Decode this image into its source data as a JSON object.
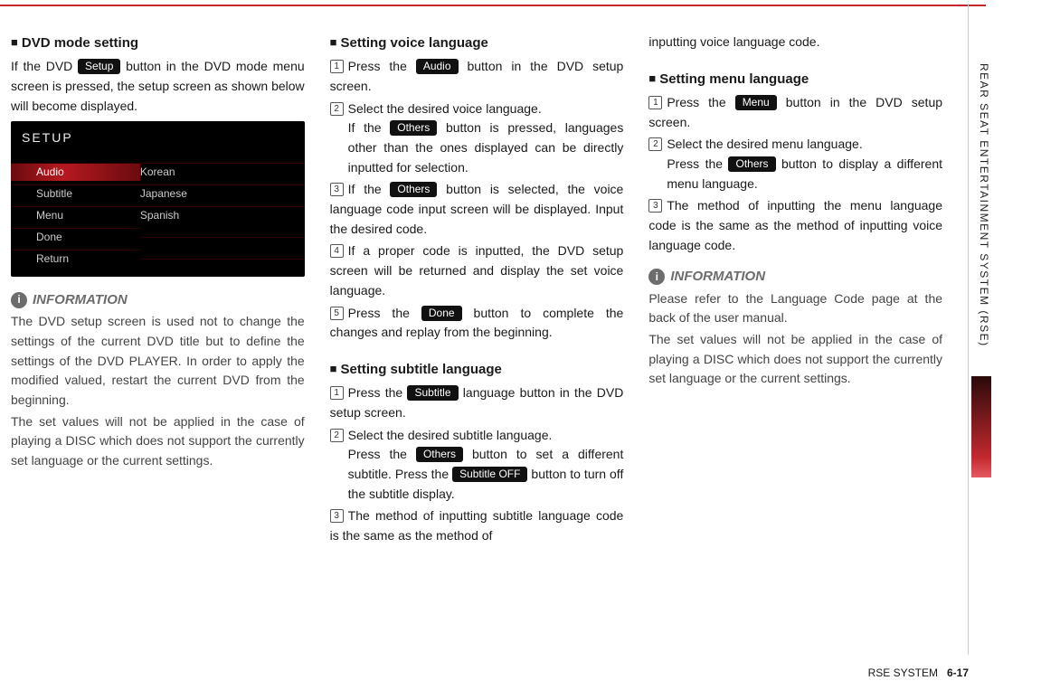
{
  "sideLabel": "REAR SEAT ENTERTAINMENT SYSTEM (RSE)",
  "footer": {
    "section": "RSE SYSTEM",
    "page": "6-17"
  },
  "pills": {
    "setup": "Setup",
    "audio": "Audio",
    "others": "Others",
    "done": "Done",
    "subtitle": "Subtitle",
    "subtitleOff": "Subtitle OFF",
    "menu": "Menu"
  },
  "col1": {
    "h1": "DVD mode setting",
    "p1a": "If the DVD ",
    "p1b": " button in the DVD mode menu screen is pressed, the setup screen as shown below will become displayed.",
    "shotTitle": "SETUP",
    "shotRows": [
      {
        "l": "Audio",
        "r": "Korean",
        "sel": true
      },
      {
        "l": "Subtitle",
        "r": "Japanese",
        "sel": false
      },
      {
        "l": "Menu",
        "r": "Spanish",
        "sel": false
      },
      {
        "l": "Done",
        "r": "",
        "sel": false
      },
      {
        "l": "Return",
        "r": "",
        "sel": false
      }
    ],
    "infoH": "INFORMATION",
    "infoP1": "The DVD setup screen is used not to change the settings of the current DVD title but to define the settings of the DVD PLAYER. In order to apply the modified valued, restart the current DVD from the beginning.",
    "infoP2": "The set values will not be applied in the case of  playing a DISC which does not support the currently set language or the current settings."
  },
  "col2": {
    "h1": "Setting voice language",
    "s1a": "Press the ",
    "s1b": " button in the DVD setup screen.",
    "s2": "Select the desired voice language.",
    "s2ia": "If the ",
    "s2ib": " button is pressed, languages other than the ones displayed can be directly inputted for selection.",
    "s3a": "If the ",
    "s3b": " button is selected, the voice language code input screen will be displayed. Input the desired code.",
    "s4": "If a proper code is inputted, the DVD setup screen will be returned and display the set voice language.",
    "s5a": "Press the ",
    "s5b": " button to complete the changes and replay from the beginning.",
    "h2": "Setting subtitle language",
    "t1a": "Press the ",
    "t1b": " language button in the DVD setup screen.",
    "t2": "Select the desired subtitle language.",
    "t2ia": "Press the ",
    "t2ib": " button to set a different subtitle. Press the ",
    "t2ic": " button to turn off the subtitle display.",
    "t3": "The method of inputting subtitle language code is the same as the method of"
  },
  "col3": {
    "cont": "inputting voice language code.",
    "h1": "Setting menu language",
    "s1a": "Press the ",
    "s1b": " button in the DVD setup screen.",
    "s2": "Select the desired menu language.",
    "s2ia": "Press the ",
    "s2ib": " button to display a different menu language.",
    "s3": "The method of inputting the menu language code is the same as the method of inputting voice language code.",
    "infoH": "INFORMATION",
    "infoP1": "Please refer to the Language Code page at the back of the user manual.",
    "infoP2": "The set values will not be applied in the case of  playing a DISC which does not support the currently set language or the current settings."
  }
}
